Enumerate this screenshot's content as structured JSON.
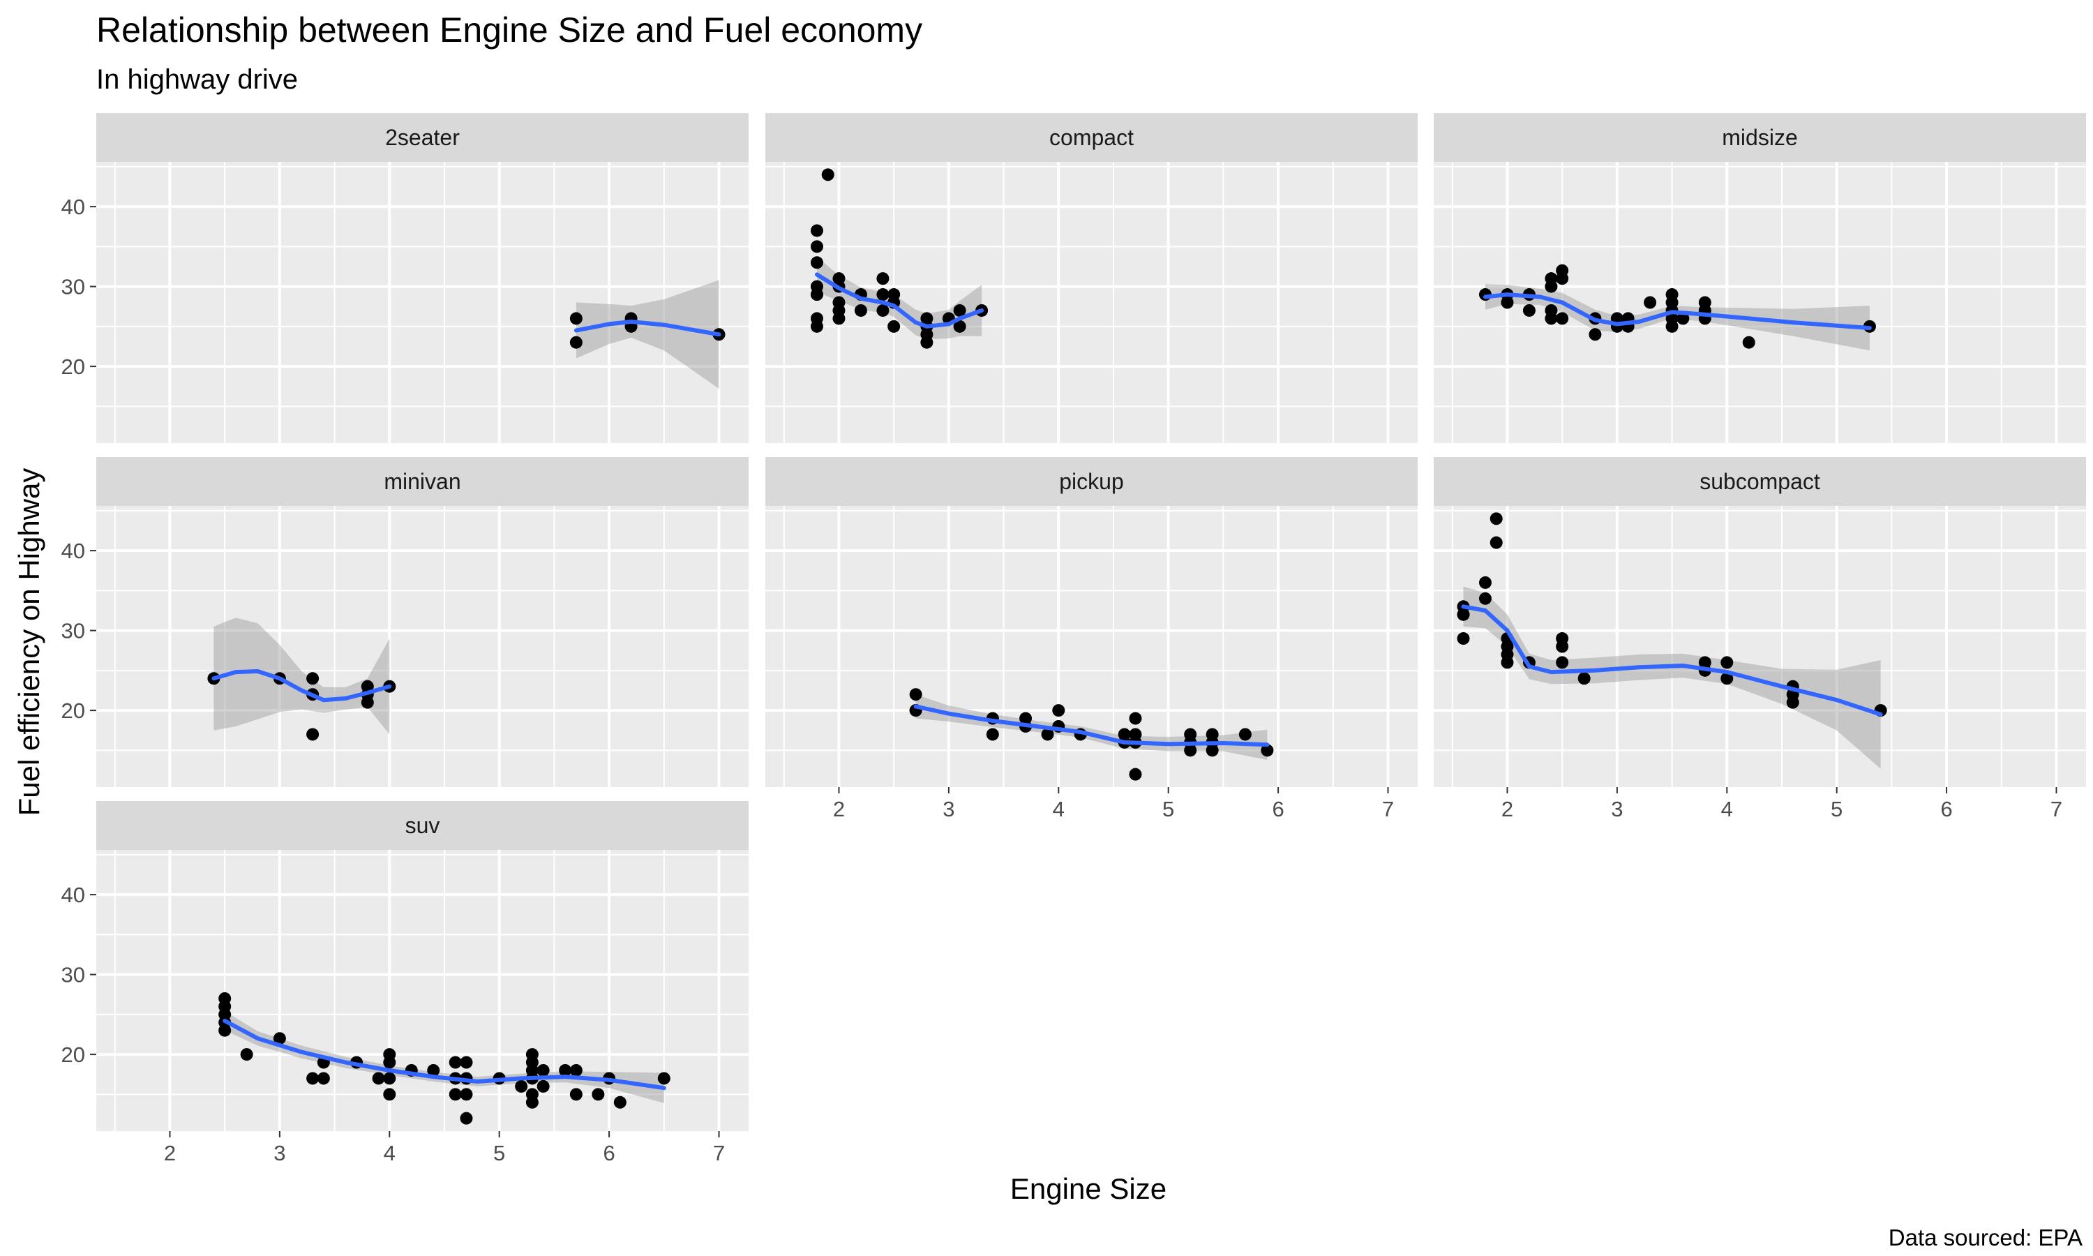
{
  "chart_data": {
    "type": "scatter",
    "title": "Relationship between Engine Size and Fuel economy",
    "subtitle": "In highway drive",
    "xlabel": "Engine Size",
    "ylabel": "Fuel efficiency on Highway",
    "caption": "Data sourced: EPA",
    "xlim": [
      1.33,
      7.27
    ],
    "ylim": [
      10.4,
      45.6
    ],
    "x_ticks": [
      2,
      3,
      4,
      5,
      6,
      7
    ],
    "y_ticks": [
      20,
      30,
      40
    ],
    "grid": true,
    "smooth_color": "#3366ff",
    "ribbon_color": "#999999",
    "panel_bg": "#ebebeb",
    "strip_bg": "#d9d9d9",
    "panels": [
      {
        "name": "2seater",
        "points": [
          [
            5.7,
            26
          ],
          [
            5.7,
            23
          ],
          [
            6.2,
            26
          ],
          [
            6.2,
            25
          ],
          [
            7.0,
            24
          ]
        ],
        "smooth": [
          [
            5.7,
            24.5
          ],
          [
            6.0,
            25.3
          ],
          [
            6.2,
            25.6
          ],
          [
            6.5,
            25.2
          ],
          [
            7.0,
            24.0
          ]
        ],
        "band": [
          [
            5.7,
            3.5
          ],
          [
            6.0,
            2.5
          ],
          [
            6.2,
            2.0
          ],
          [
            6.5,
            3.2
          ],
          [
            7.0,
            6.8
          ]
        ]
      },
      {
        "name": "compact",
        "points": [
          [
            1.8,
            29
          ],
          [
            1.8,
            29
          ],
          [
            1.8,
            30
          ],
          [
            1.8,
            33
          ],
          [
            1.8,
            35
          ],
          [
            1.8,
            37
          ],
          [
            1.8,
            26
          ],
          [
            1.8,
            25
          ],
          [
            1.9,
            44
          ],
          [
            2.0,
            31
          ],
          [
            2.0,
            30
          ],
          [
            2.0,
            28
          ],
          [
            2.0,
            27
          ],
          [
            2.0,
            26
          ],
          [
            2.2,
            27
          ],
          [
            2.2,
            29
          ],
          [
            2.4,
            31
          ],
          [
            2.4,
            27
          ],
          [
            2.4,
            29
          ],
          [
            2.5,
            29
          ],
          [
            2.5,
            25
          ],
          [
            2.5,
            28
          ],
          [
            2.8,
            26
          ],
          [
            2.8,
            25
          ],
          [
            2.8,
            24
          ],
          [
            2.8,
            23
          ],
          [
            3.0,
            26
          ],
          [
            3.1,
            27
          ],
          [
            3.1,
            25
          ],
          [
            3.3,
            27
          ]
        ],
        "smooth": [
          [
            1.8,
            31.5
          ],
          [
            2.0,
            29.8
          ],
          [
            2.2,
            28.5
          ],
          [
            2.4,
            28.0
          ],
          [
            2.5,
            27.6
          ],
          [
            2.7,
            25.5
          ],
          [
            2.8,
            25.0
          ],
          [
            3.0,
            25.3
          ],
          [
            3.1,
            26.0
          ],
          [
            3.3,
            27.0
          ]
        ],
        "band": [
          [
            1.8,
            2.2
          ],
          [
            2.0,
            1.6
          ],
          [
            2.2,
            1.4
          ],
          [
            2.4,
            1.3
          ],
          [
            2.5,
            1.4
          ],
          [
            2.7,
            1.6
          ],
          [
            2.8,
            1.6
          ],
          [
            3.0,
            1.8
          ],
          [
            3.1,
            2.2
          ],
          [
            3.3,
            3.2
          ]
        ]
      },
      {
        "name": "midsize",
        "points": [
          [
            1.8,
            29
          ],
          [
            2.0,
            29
          ],
          [
            2.0,
            28
          ],
          [
            2.2,
            27
          ],
          [
            2.2,
            29
          ],
          [
            2.4,
            31
          ],
          [
            2.4,
            30
          ],
          [
            2.4,
            27
          ],
          [
            2.4,
            26
          ],
          [
            2.5,
            32
          ],
          [
            2.5,
            31
          ],
          [
            2.5,
            26
          ],
          [
            2.8,
            26
          ],
          [
            2.8,
            24
          ],
          [
            3.0,
            26
          ],
          [
            3.0,
            25
          ],
          [
            3.1,
            26
          ],
          [
            3.1,
            25
          ],
          [
            3.3,
            28
          ],
          [
            3.5,
            29
          ],
          [
            3.5,
            28
          ],
          [
            3.5,
            27
          ],
          [
            3.5,
            26
          ],
          [
            3.5,
            25
          ],
          [
            3.6,
            26
          ],
          [
            3.8,
            28
          ],
          [
            3.8,
            27
          ],
          [
            3.8,
            26
          ],
          [
            4.2,
            23
          ],
          [
            5.3,
            25
          ]
        ],
        "smooth": [
          [
            1.8,
            28.7
          ],
          [
            2.0,
            29.0
          ],
          [
            2.3,
            28.7
          ],
          [
            2.5,
            28.0
          ],
          [
            2.8,
            25.8
          ],
          [
            3.0,
            25.3
          ],
          [
            3.2,
            25.6
          ],
          [
            3.5,
            26.8
          ],
          [
            3.8,
            26.5
          ],
          [
            4.2,
            26.0
          ],
          [
            4.6,
            25.5
          ],
          [
            5.3,
            24.8
          ]
        ],
        "band": [
          [
            1.8,
            1.6
          ],
          [
            2.0,
            1.2
          ],
          [
            2.3,
            1.0
          ],
          [
            2.5,
            1.2
          ],
          [
            2.8,
            1.3
          ],
          [
            3.0,
            1.0
          ],
          [
            3.2,
            0.9
          ],
          [
            3.5,
            0.8
          ],
          [
            3.8,
            0.9
          ],
          [
            4.2,
            1.3
          ],
          [
            4.6,
            1.7
          ],
          [
            5.3,
            2.8
          ]
        ]
      },
      {
        "name": "minivan",
        "points": [
          [
            2.4,
            24
          ],
          [
            3.0,
            24
          ],
          [
            3.3,
            24
          ],
          [
            3.3,
            22
          ],
          [
            3.3,
            17
          ],
          [
            3.8,
            23
          ],
          [
            3.8,
            22
          ],
          [
            3.8,
            21
          ],
          [
            4.0,
            23
          ]
        ],
        "smooth": [
          [
            2.4,
            24.0
          ],
          [
            2.6,
            24.8
          ],
          [
            2.8,
            24.9
          ],
          [
            3.0,
            24.0
          ],
          [
            3.2,
            22.5
          ],
          [
            3.4,
            21.3
          ],
          [
            3.6,
            21.5
          ],
          [
            3.8,
            22.2
          ],
          [
            4.0,
            23.0
          ]
        ],
        "band": [
          [
            2.4,
            6.5
          ],
          [
            2.6,
            6.8
          ],
          [
            2.8,
            6.0
          ],
          [
            3.0,
            4.2
          ],
          [
            3.2,
            2.4
          ],
          [
            3.4,
            1.6
          ],
          [
            3.6,
            1.4
          ],
          [
            3.8,
            1.8
          ],
          [
            4.0,
            6.0
          ]
        ]
      },
      {
        "name": "pickup",
        "points": [
          [
            2.7,
            22
          ],
          [
            2.7,
            20
          ],
          [
            2.7,
            20
          ],
          [
            3.4,
            19
          ],
          [
            3.4,
            17
          ],
          [
            3.7,
            19
          ],
          [
            3.7,
            18
          ],
          [
            3.9,
            17
          ],
          [
            4.0,
            20
          ],
          [
            4.0,
            18
          ],
          [
            4.2,
            17
          ],
          [
            4.6,
            17
          ],
          [
            4.6,
            16
          ],
          [
            4.7,
            19
          ],
          [
            4.7,
            17
          ],
          [
            4.7,
            16
          ],
          [
            4.7,
            12
          ],
          [
            5.2,
            17
          ],
          [
            5.2,
            16
          ],
          [
            5.2,
            15
          ],
          [
            5.4,
            17
          ],
          [
            5.4,
            16
          ],
          [
            5.4,
            15
          ],
          [
            5.7,
            17
          ],
          [
            5.9,
            15
          ]
        ],
        "smooth": [
          [
            2.7,
            20.5
          ],
          [
            3.0,
            19.6
          ],
          [
            3.4,
            18.7
          ],
          [
            3.8,
            18.0
          ],
          [
            4.2,
            17.3
          ],
          [
            4.6,
            16.0
          ],
          [
            5.0,
            15.8
          ],
          [
            5.5,
            15.9
          ],
          [
            5.9,
            15.7
          ]
        ],
        "band": [
          [
            2.7,
            1.5
          ],
          [
            3.0,
            1.0
          ],
          [
            3.4,
            0.8
          ],
          [
            3.8,
            0.7
          ],
          [
            4.2,
            0.7
          ],
          [
            4.6,
            0.8
          ],
          [
            5.0,
            0.9
          ],
          [
            5.5,
            1.0
          ],
          [
            5.9,
            1.9
          ]
        ]
      },
      {
        "name": "subcompact",
        "points": [
          [
            1.6,
            33
          ],
          [
            1.6,
            32
          ],
          [
            1.6,
            32
          ],
          [
            1.6,
            29
          ],
          [
            1.8,
            36
          ],
          [
            1.8,
            34
          ],
          [
            1.9,
            44
          ],
          [
            1.9,
            41
          ],
          [
            2.0,
            29
          ],
          [
            2.0,
            28
          ],
          [
            2.0,
            27
          ],
          [
            2.0,
            26
          ],
          [
            2.2,
            26
          ],
          [
            2.5,
            29
          ],
          [
            2.5,
            28
          ],
          [
            2.5,
            26
          ],
          [
            2.7,
            24
          ],
          [
            3.8,
            26
          ],
          [
            3.8,
            25
          ],
          [
            4.0,
            26
          ],
          [
            4.0,
            24
          ],
          [
            4.6,
            23
          ],
          [
            4.6,
            22
          ],
          [
            4.6,
            21
          ],
          [
            5.4,
            20
          ]
        ],
        "smooth": [
          [
            1.6,
            33.0
          ],
          [
            1.8,
            32.5
          ],
          [
            2.0,
            30.0
          ],
          [
            2.2,
            25.5
          ],
          [
            2.4,
            24.8
          ],
          [
            2.8,
            25.0
          ],
          [
            3.2,
            25.4
          ],
          [
            3.6,
            25.6
          ],
          [
            4.0,
            24.8
          ],
          [
            4.5,
            23.0
          ],
          [
            5.0,
            21.3
          ],
          [
            5.4,
            19.5
          ]
        ],
        "band": [
          [
            1.6,
            2.5
          ],
          [
            1.8,
            2.2
          ],
          [
            2.0,
            2.0
          ],
          [
            2.2,
            1.6
          ],
          [
            2.4,
            1.5
          ],
          [
            2.8,
            1.6
          ],
          [
            3.2,
            1.6
          ],
          [
            3.6,
            1.5
          ],
          [
            4.0,
            1.5
          ],
          [
            4.5,
            2.2
          ],
          [
            5.0,
            3.8
          ],
          [
            5.4,
            6.8
          ]
        ]
      },
      {
        "name": "suv",
        "points": [
          [
            2.5,
            27
          ],
          [
            2.5,
            26
          ],
          [
            2.5,
            25
          ],
          [
            2.5,
            24
          ],
          [
            2.5,
            23
          ],
          [
            2.7,
            20
          ],
          [
            3.0,
            22
          ],
          [
            3.3,
            17
          ],
          [
            3.4,
            19
          ],
          [
            3.4,
            17
          ],
          [
            3.7,
            19
          ],
          [
            3.9,
            17
          ],
          [
            4.0,
            20
          ],
          [
            4.0,
            19
          ],
          [
            4.0,
            17
          ],
          [
            4.0,
            15
          ],
          [
            4.2,
            18
          ],
          [
            4.4,
            18
          ],
          [
            4.6,
            19
          ],
          [
            4.6,
            17
          ],
          [
            4.6,
            15
          ],
          [
            4.7,
            19
          ],
          [
            4.7,
            17
          ],
          [
            4.7,
            15
          ],
          [
            4.7,
            12
          ],
          [
            5.0,
            17
          ],
          [
            5.2,
            16
          ],
          [
            5.3,
            20
          ],
          [
            5.3,
            19
          ],
          [
            5.3,
            18
          ],
          [
            5.3,
            17
          ],
          [
            5.3,
            15
          ],
          [
            5.3,
            14
          ],
          [
            5.4,
            18
          ],
          [
            5.4,
            16
          ],
          [
            5.6,
            18
          ],
          [
            5.7,
            18
          ],
          [
            5.7,
            15
          ],
          [
            5.9,
            15
          ],
          [
            6.0,
            17
          ],
          [
            6.1,
            14
          ],
          [
            6.5,
            17
          ]
        ],
        "smooth": [
          [
            2.5,
            24.2
          ],
          [
            2.8,
            22.0
          ],
          [
            3.2,
            20.3
          ],
          [
            3.6,
            19.0
          ],
          [
            4.0,
            18.0
          ],
          [
            4.4,
            17.2
          ],
          [
            4.8,
            16.6
          ],
          [
            5.2,
            17.0
          ],
          [
            5.6,
            17.2
          ],
          [
            6.0,
            16.8
          ],
          [
            6.5,
            15.8
          ]
        ],
        "band": [
          [
            2.5,
            1.2
          ],
          [
            2.8,
            0.9
          ],
          [
            3.2,
            0.8
          ],
          [
            3.6,
            0.7
          ],
          [
            4.0,
            0.6
          ],
          [
            4.4,
            0.6
          ],
          [
            4.8,
            0.6
          ],
          [
            5.2,
            0.6
          ],
          [
            5.6,
            0.7
          ],
          [
            6.0,
            1.0
          ],
          [
            6.5,
            1.9
          ]
        ]
      }
    ]
  }
}
